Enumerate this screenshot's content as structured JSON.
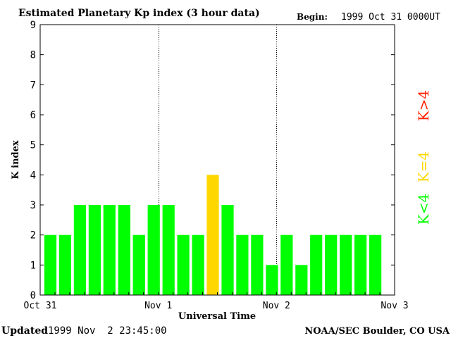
{
  "chart_data": {
    "type": "bar",
    "title": "Estimated Planetary Kp index (3 hour data)",
    "begin_label": "Begin:",
    "begin_value": "1999 Oct 31 0000UT",
    "xlabel": "Universal Time",
    "ylabel": "K index",
    "ylim": [
      0,
      9
    ],
    "yticks": [
      "0",
      "1",
      "2",
      "3",
      "4",
      "5",
      "6",
      "7",
      "8",
      "9"
    ],
    "xlim_days": [
      0,
      3
    ],
    "xticks": [
      {
        "day": 0,
        "label": "Oct 31"
      },
      {
        "day": 1,
        "label": "Nov 1"
      },
      {
        "day": 2,
        "label": "Nov 2"
      },
      {
        "day": 3,
        "label": "Nov 3"
      }
    ],
    "day_separators": [
      1,
      2
    ],
    "interval_hours": 3,
    "values": [
      2,
      2,
      3,
      3,
      3,
      3,
      2,
      3,
      3,
      2,
      2,
      4,
      3,
      2,
      2,
      1,
      2,
      1,
      2,
      2,
      2,
      2,
      2
    ],
    "legend": [
      {
        "label": "K<4",
        "color": "#00ff00"
      },
      {
        "label": "K=4",
        "color": "#ffd700"
      },
      {
        "label": "K>4",
        "color": "#ff2000"
      }
    ],
    "colors": {
      "low": "#00ff00",
      "mid": "#ffd700",
      "high": "#ff2000"
    }
  },
  "footer": {
    "updated_label": "Updated",
    "updated_value": "1999 Nov  2 23:45:00",
    "credit": "NOAA/SEC Boulder, CO USA"
  }
}
